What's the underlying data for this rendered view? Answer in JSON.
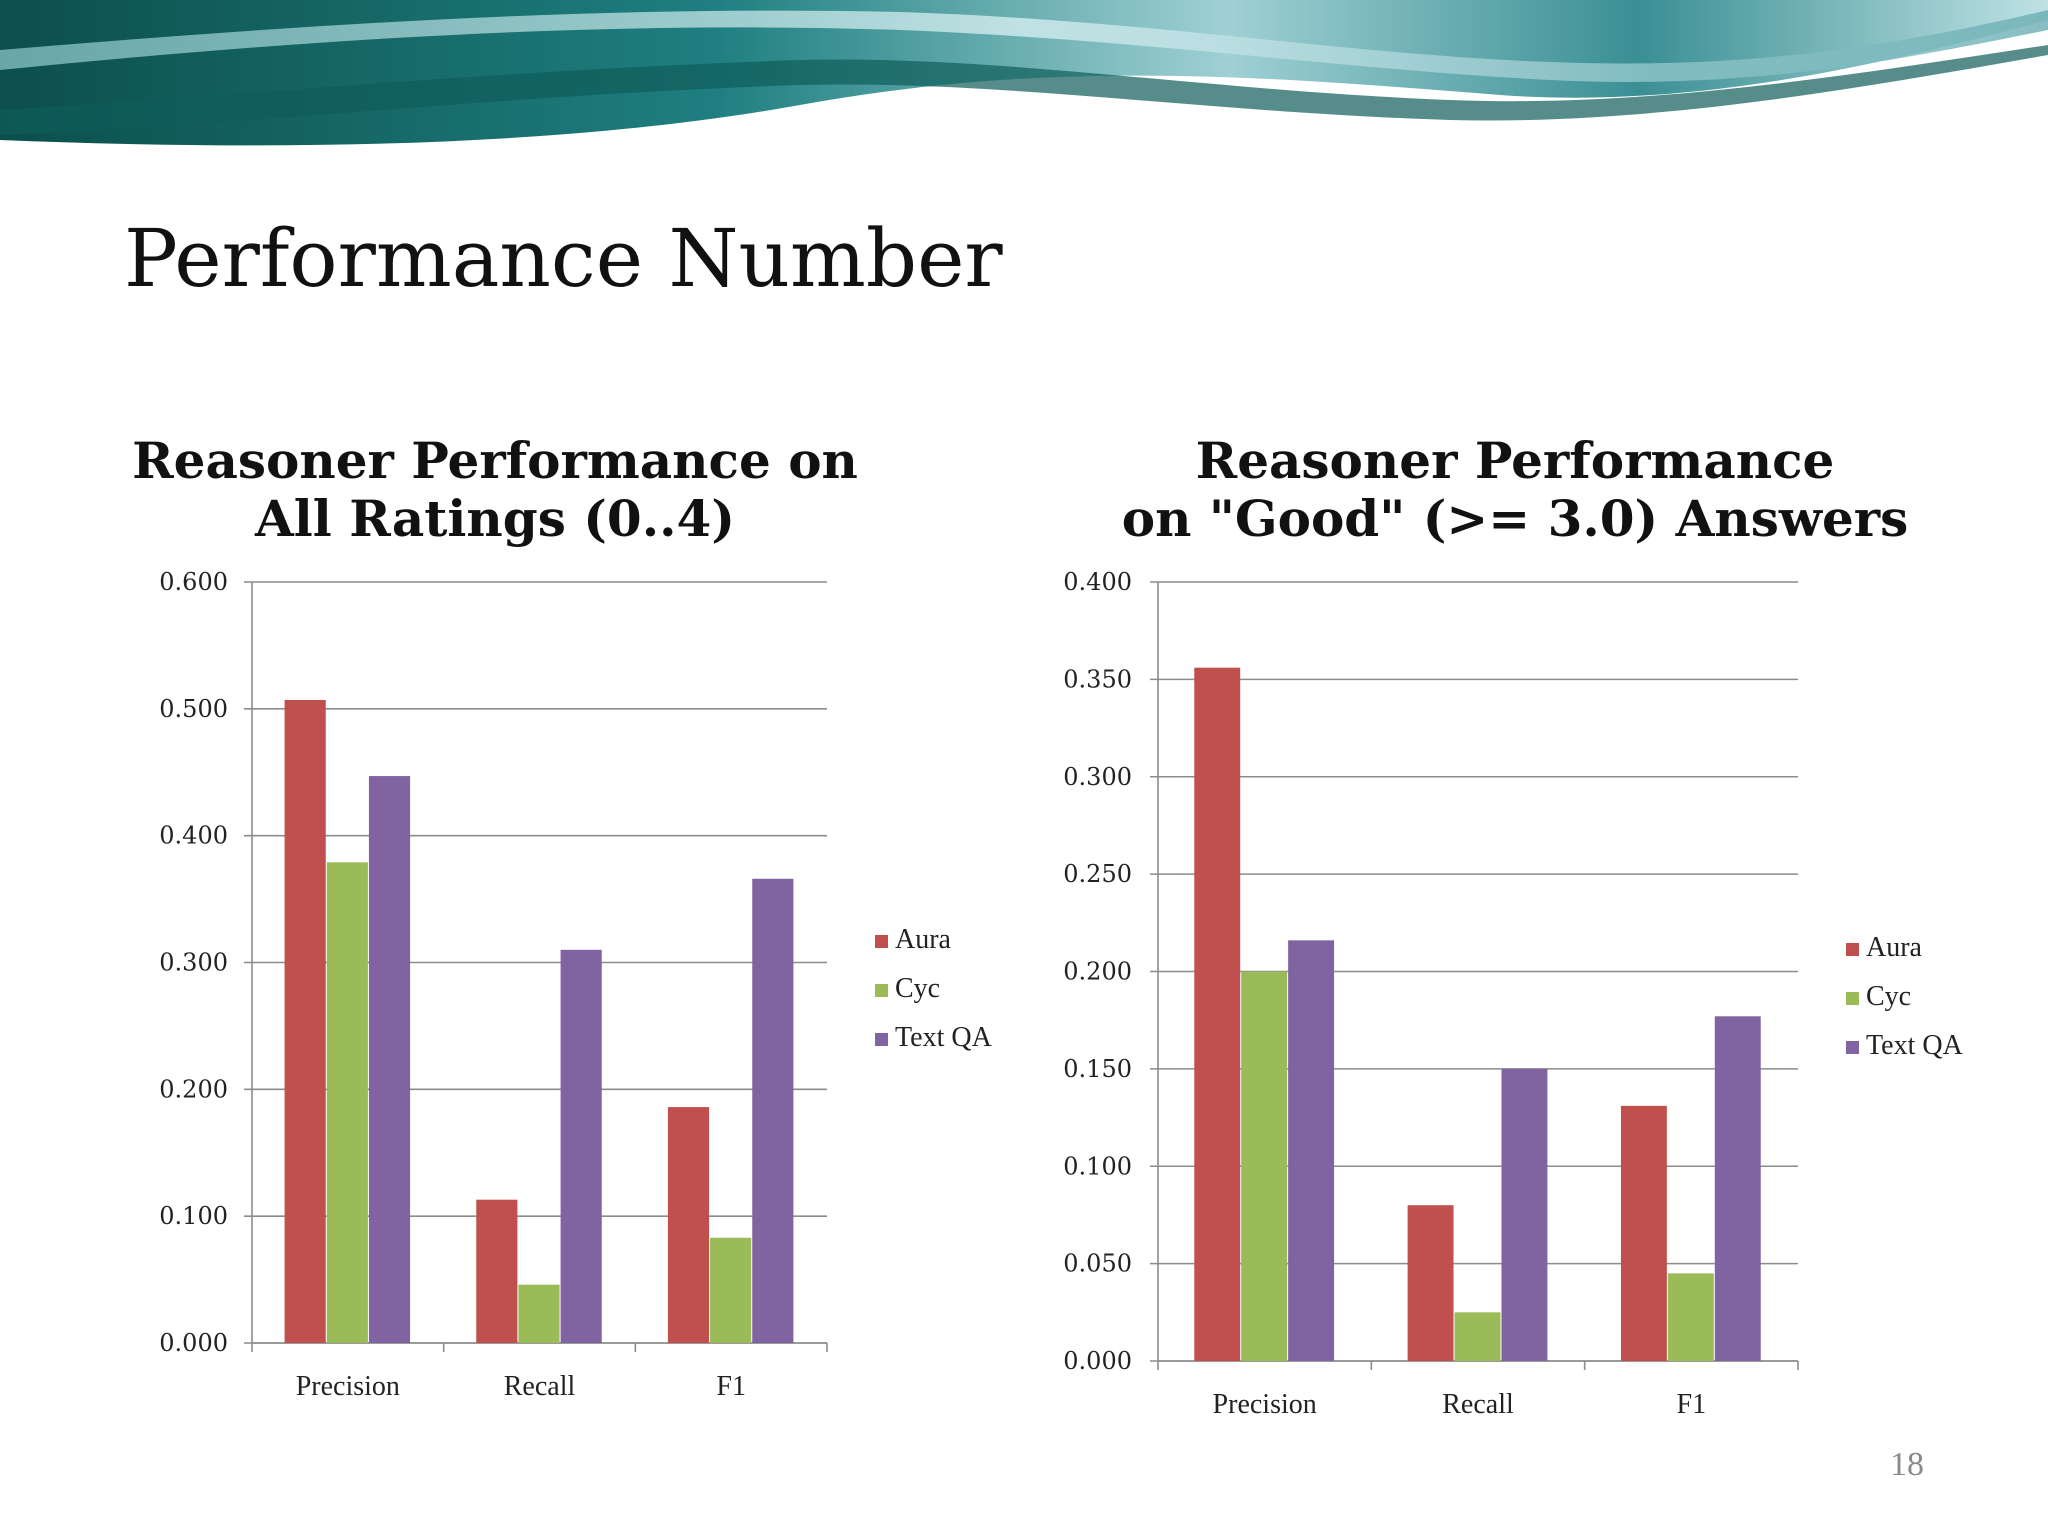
{
  "slide": {
    "title": "Performance Number",
    "page_number": "18"
  },
  "colors": {
    "Aura": "#c0504d",
    "Cyc": "#9bbb59",
    "Text QA": "#8064a2",
    "banner_dark": "#0f5a57",
    "banner_light": "#7fc3c8"
  },
  "chart_data": [
    {
      "type": "bar",
      "title_lines": [
        "Reasoner Performance on",
        "All Ratings (0..4)"
      ],
      "categories": [
        "Precision",
        "Recall",
        "F1"
      ],
      "series": [
        {
          "name": "Aura",
          "values": [
            0.507,
            0.113,
            0.186
          ]
        },
        {
          "name": "Cyc",
          "values": [
            0.379,
            0.046,
            0.083
          ]
        },
        {
          "name": "Text QA",
          "values": [
            0.447,
            0.31,
            0.366
          ]
        }
      ],
      "ylim": [
        0,
        0.6
      ],
      "yticks": [
        "0.000",
        "0.100",
        "0.200",
        "0.300",
        "0.400",
        "0.500",
        "0.600"
      ],
      "grid": true,
      "legend_position": "right"
    },
    {
      "type": "bar",
      "title_lines": [
        "Reasoner Performance",
        "on \"Good\" (>= 3.0) Answers"
      ],
      "categories": [
        "Precision",
        "Recall",
        "F1"
      ],
      "series": [
        {
          "name": "Aura",
          "values": [
            0.356,
            0.08,
            0.131
          ]
        },
        {
          "name": "Cyc",
          "values": [
            0.2,
            0.025,
            0.045
          ]
        },
        {
          "name": "Text QA",
          "values": [
            0.216,
            0.15,
            0.177
          ]
        }
      ],
      "ylim": [
        0,
        0.4
      ],
      "yticks": [
        "0.000",
        "0.050",
        "0.100",
        "0.150",
        "0.200",
        "0.250",
        "0.300",
        "0.350",
        "0.400"
      ],
      "grid": true,
      "legend_position": "right"
    }
  ]
}
